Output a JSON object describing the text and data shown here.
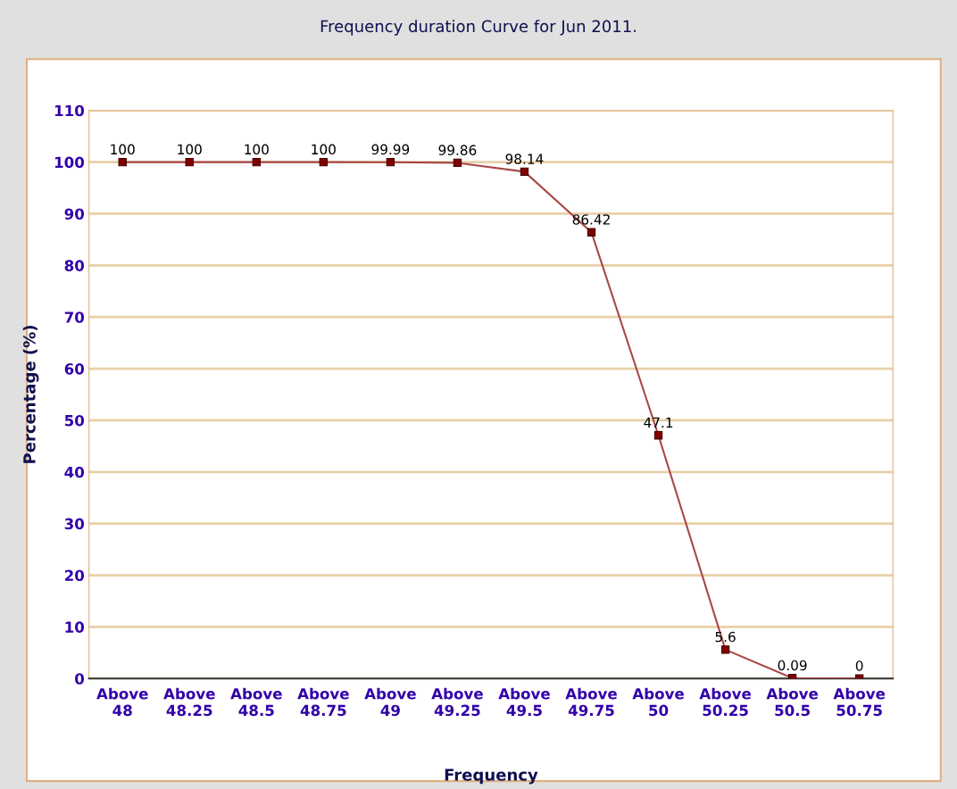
{
  "chart_data": {
    "type": "line",
    "title": "Frequency duration Curve for Jun 2011.",
    "xlabel": "Frequency",
    "ylabel": "Percentage (%)",
    "categories": [
      "Above 48",
      "Above 48.25",
      "Above 48.5",
      "Above 48.75",
      "Above 49",
      "Above 49.25",
      "Above 49.5",
      "Above 49.75",
      "Above 50",
      "Above 50.25",
      "Above 50.5",
      "Above 50.75"
    ],
    "series": [
      {
        "color": "#a84848",
        "values": [
          100,
          100,
          100,
          100,
          99.99,
          99.86,
          98.14,
          86.42,
          47.1,
          5.6,
          0.09,
          0
        ]
      }
    ],
    "ylim": [
      0,
      110
    ],
    "yticks": [
      0,
      10,
      20,
      30,
      40,
      50,
      60,
      70,
      80,
      90,
      100,
      110
    ],
    "grid": "y",
    "marker": "square",
    "line_style": "solid",
    "data_labels": true
  }
}
